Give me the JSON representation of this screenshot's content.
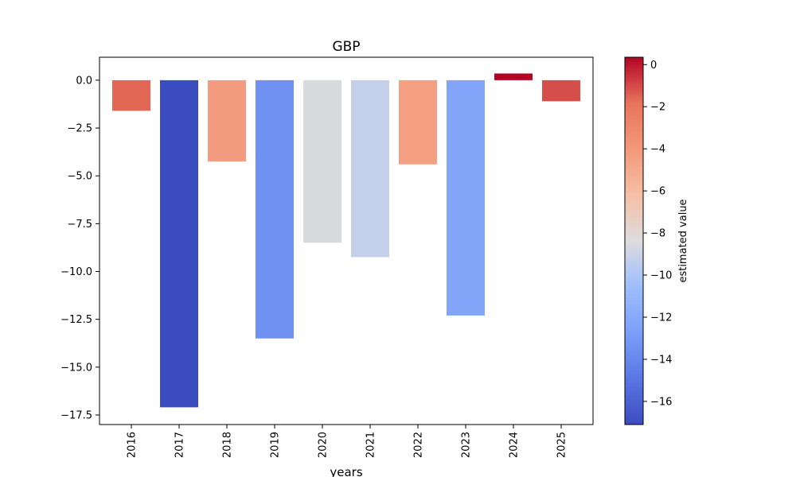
{
  "chart_data": {
    "type": "bar",
    "title": "GBP",
    "xlabel": "years",
    "ylabel": "",
    "categories": [
      "2016",
      "2017",
      "2018",
      "2019",
      "2020",
      "2021",
      "2022",
      "2023",
      "2024",
      "2025"
    ],
    "values": [
      -1.6,
      -17.1,
      -4.25,
      -13.5,
      -8.5,
      -9.25,
      -4.4,
      -12.3,
      0.35,
      -1.1
    ],
    "ylim": [
      -18.0,
      1.2
    ],
    "yticks": [
      0.0,
      -2.5,
      -5.0,
      -7.5,
      -10.0,
      -12.5,
      -15.0,
      -17.5
    ],
    "ytick_labels": [
      "0.0",
      "−2.5",
      "−5.0",
      "−7.5",
      "−10.0",
      "−12.5",
      "−15.0",
      "−17.5"
    ],
    "colorbar": {
      "label": "estimated value",
      "colormap": "coolwarm",
      "range": [
        -17.1,
        0.35
      ],
      "ticks": [
        0,
        -2,
        -4,
        -6,
        -8,
        -10,
        -12,
        -14,
        -16
      ],
      "tick_labels": [
        "0",
        "−2",
        "−4",
        "−6",
        "−8",
        "−10",
        "−12",
        "−14",
        "−16"
      ]
    },
    "grid": false,
    "legend": "none"
  }
}
